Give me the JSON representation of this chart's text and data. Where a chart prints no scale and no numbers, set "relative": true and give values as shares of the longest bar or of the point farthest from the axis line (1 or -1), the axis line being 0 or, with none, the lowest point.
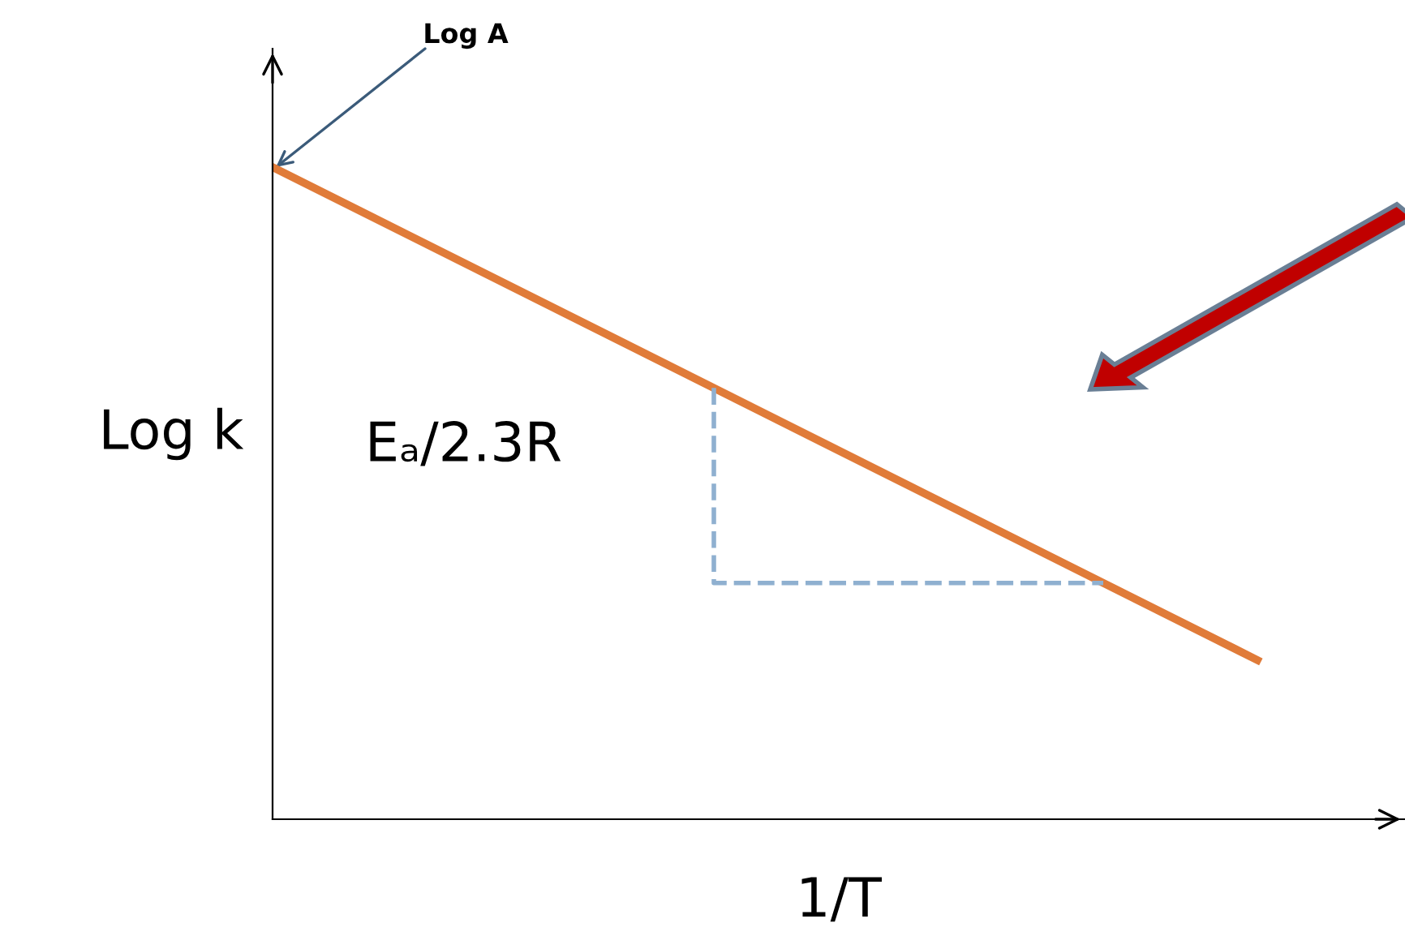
{
  "chart_data": {
    "type": "line",
    "relative": true,
    "xlabel": "1/T",
    "ylabel": "Log k",
    "categories": [
      null,
      null
    ],
    "series": [
      {
        "color": "#e07b39",
        "values": [
          1,
          0.244
        ]
      }
    ],
    "annotations": [
      "Log A",
      "Eₐ/2.3R"
    ],
    "marker": "none",
    "line_style": "solid"
  }
}
